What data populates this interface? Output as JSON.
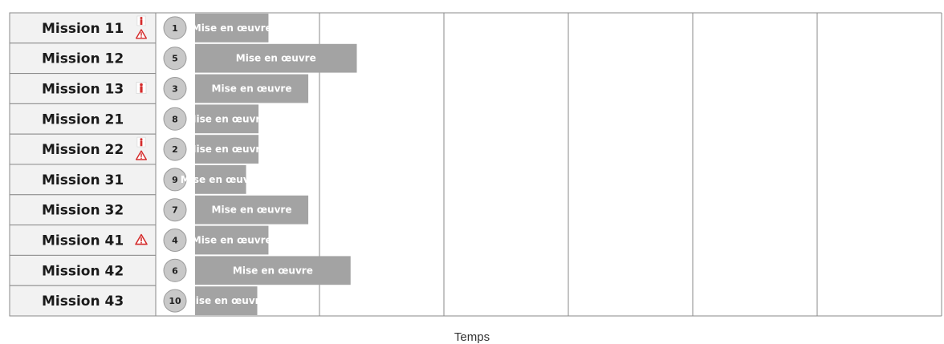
{
  "chart_data": {
    "type": "bar",
    "orientation": "horizontal",
    "xlabel": "Temps",
    "ylabel": "",
    "title": "",
    "grid": true,
    "time_units_per_column": 1,
    "columns": 6,
    "categories": [
      "Mission 11",
      "Mission 12",
      "Mission 13",
      "Mission 21",
      "Mission 22",
      "Mission 31",
      "Mission 32",
      "Mission 41",
      "Mission 42",
      "Mission 43"
    ],
    "ranks": [
      1,
      5,
      3,
      8,
      2,
      9,
      7,
      4,
      6,
      10
    ],
    "values": [
      0.59,
      1.3,
      0.91,
      0.51,
      0.51,
      0.41,
      0.91,
      0.59,
      1.25,
      0.5
    ],
    "bar_labels": [
      "Mise en œuvre",
      "Mise en œuvre",
      "Mise en œuvre",
      "Mise en œuvre",
      "Mise en œuvre",
      "Mise en œuvre",
      "Mise en œuvre",
      "Mise en œuvre",
      "Mise en œuvre",
      "Mise en œuvre"
    ],
    "icons": [
      [
        "person-alert-icon",
        "warning-triangle-icon"
      ],
      [],
      [
        "person-alert-icon"
      ],
      [],
      [
        "person-alert-icon",
        "warning-triangle-icon"
      ],
      [],
      [],
      [
        "warning-triangle-icon"
      ],
      [],
      []
    ]
  },
  "colors": {
    "bar": "#a3a3a3",
    "label_cell": "#f2f2f2",
    "rank_circle": "#c8c8c8",
    "grid": "#8a8a8a",
    "icon_red": "#d42b2b"
  }
}
